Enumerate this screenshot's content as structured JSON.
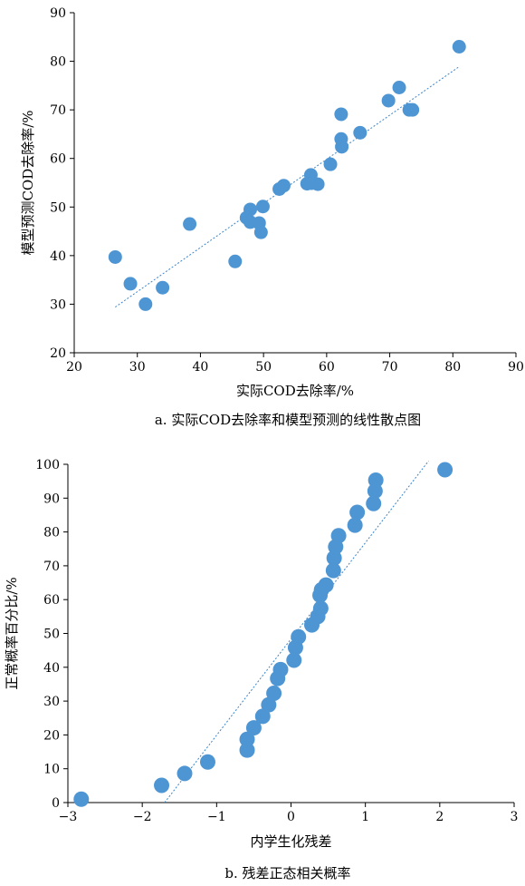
{
  "colors": {
    "marker": "#4e95d3",
    "trend": "#3d85c6",
    "axis": "#000000"
  },
  "chart_data": [
    {
      "type": "scatter",
      "caption": "a. 实际COD去除率和模型预测的线性散点图",
      "xlabel": "实际COD去除率/%",
      "ylabel": "模型预测COD去除率/%",
      "xlim": [
        20,
        90
      ],
      "ylim": [
        20,
        90
      ],
      "xticks": [
        20,
        30,
        40,
        50,
        60,
        70,
        80,
        90
      ],
      "yticks": [
        20,
        30,
        40,
        50,
        60,
        70,
        80,
        90
      ],
      "points": [
        [
          26.5,
          39.7
        ],
        [
          28.9,
          34.2
        ],
        [
          31.3,
          30.0
        ],
        [
          34.0,
          33.4
        ],
        [
          38.3,
          46.5
        ],
        [
          45.5,
          38.8
        ],
        [
          47.3,
          47.8
        ],
        [
          47.9,
          46.9
        ],
        [
          47.9,
          49.5
        ],
        [
          49.3,
          46.7
        ],
        [
          49.6,
          44.8
        ],
        [
          49.9,
          50.1
        ],
        [
          52.5,
          53.7
        ],
        [
          53.2,
          54.4
        ],
        [
          56.9,
          54.8
        ],
        [
          57.5,
          56.6
        ],
        [
          57.6,
          54.9
        ],
        [
          58.6,
          54.7
        ],
        [
          60.6,
          58.8
        ],
        [
          62.3,
          64.0
        ],
        [
          62.3,
          69.1
        ],
        [
          62.4,
          62.4
        ],
        [
          65.3,
          65.3
        ],
        [
          69.8,
          71.9
        ],
        [
          71.5,
          74.6
        ],
        [
          73.1,
          70.0
        ],
        [
          73.6,
          70.0
        ],
        [
          81.0,
          83.0
        ]
      ],
      "trendline": {
        "x": [
          26.5,
          81.0
        ],
        "y": [
          29.4,
          78.9
        ]
      }
    },
    {
      "type": "scatter",
      "caption": "b. 残差正态相关概率",
      "xlabel": "内学生化残差",
      "ylabel": "正常概率百分比/%",
      "xlim": [
        -3,
        3
      ],
      "ylim": [
        0,
        100
      ],
      "xticks": [
        -3,
        -2,
        -1,
        0,
        1,
        2,
        3
      ],
      "xtick_labels": [
        "−3",
        "−2",
        "−1",
        "0",
        "1",
        "2",
        "3"
      ],
      "yticks": [
        0,
        10,
        20,
        30,
        40,
        50,
        60,
        70,
        80,
        90,
        100
      ],
      "points": [
        [
          -2.82,
          1.0
        ],
        [
          -1.74,
          5.1
        ],
        [
          -1.43,
          8.6
        ],
        [
          -1.12,
          12.0
        ],
        [
          -0.59,
          15.5
        ],
        [
          -0.59,
          18.7
        ],
        [
          -0.5,
          22.1
        ],
        [
          -0.38,
          25.5
        ],
        [
          -0.3,
          28.9
        ],
        [
          -0.23,
          32.3
        ],
        [
          -0.18,
          36.7
        ],
        [
          -0.14,
          39.3
        ],
        [
          0.04,
          42.1
        ],
        [
          0.06,
          45.8
        ],
        [
          0.1,
          49.0
        ],
        [
          0.28,
          52.5
        ],
        [
          0.36,
          55.0
        ],
        [
          0.4,
          57.4
        ],
        [
          0.39,
          61.3
        ],
        [
          0.41,
          62.9
        ],
        [
          0.47,
          64.3
        ],
        [
          0.57,
          68.6
        ],
        [
          0.58,
          72.3
        ],
        [
          0.6,
          75.6
        ],
        [
          0.64,
          78.9
        ],
        [
          0.86,
          82.0
        ],
        [
          0.89,
          85.8
        ],
        [
          1.11,
          88.4
        ],
        [
          1.13,
          92.1
        ],
        [
          1.14,
          95.3
        ],
        [
          2.07,
          98.4
        ]
      ],
      "trendline": {
        "x": [
          -1.7,
          1.85
        ],
        "y": [
          0,
          101
        ]
      }
    }
  ]
}
